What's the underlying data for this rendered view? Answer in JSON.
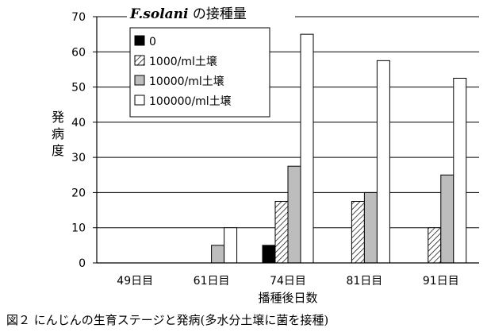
{
  "caption": "図２ にんじんの生育ステージと発病(多水分土壌に菌を接種)",
  "chart_data": {
    "type": "bar",
    "ylabel": [
      "発",
      "病",
      "度"
    ],
    "xlabel": "播種後日数",
    "ylim": [
      0,
      70
    ],
    "yticks": [
      "0",
      "10",
      "20",
      "30",
      "40",
      "50",
      "60",
      "70"
    ],
    "categories": [
      "49日目",
      "61日目",
      "74日目",
      "81日目",
      "91日目"
    ],
    "legend": {
      "title_italic": "F.solani",
      "title_rest": " の接種量",
      "position": "top-left"
    },
    "series": [
      {
        "name": "0",
        "fill": "#000000",
        "values": [
          0,
          0,
          5,
          0,
          0
        ]
      },
      {
        "name": "1000/ml土壌",
        "fill": "hatch",
        "values": [
          0,
          0,
          17.5,
          17.5,
          10
        ]
      },
      {
        "name": "10000/ml土壌",
        "fill": "#bdbdbd",
        "values": [
          0,
          5,
          27.5,
          20,
          25
        ]
      },
      {
        "name": "100000/ml土壌",
        "fill": "#ffffff",
        "values": [
          0,
          10,
          65,
          57.5,
          52.5
        ]
      }
    ],
    "grid": true
  }
}
